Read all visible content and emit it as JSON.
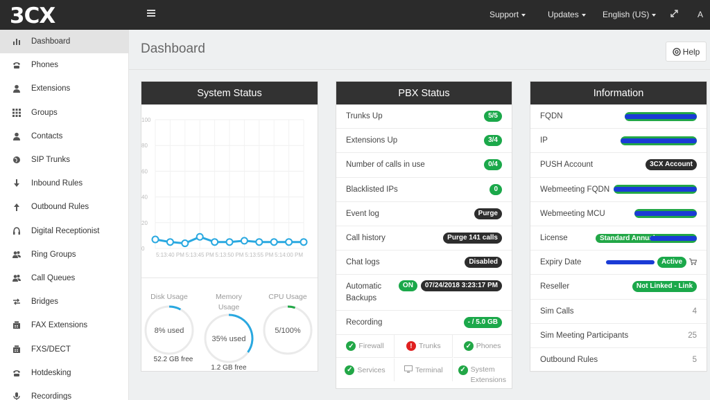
{
  "topbar": {
    "logo": "3CX",
    "nav": [
      "Support",
      "Updates",
      "English (US)"
    ],
    "user": "A"
  },
  "sidebar": {
    "items": [
      {
        "label": "Dashboard",
        "icon": "bar-chart-icon",
        "active": true
      },
      {
        "label": "Phones",
        "icon": "phone-icon"
      },
      {
        "label": "Extensions",
        "icon": "user-icon"
      },
      {
        "label": "Groups",
        "icon": "grid-icon"
      },
      {
        "label": "Contacts",
        "icon": "user-icon"
      },
      {
        "label": "SIP Trunks",
        "icon": "globe-icon"
      },
      {
        "label": "Inbound Rules",
        "icon": "arrow-down-icon"
      },
      {
        "label": "Outbound Rules",
        "icon": "arrow-up-icon"
      },
      {
        "label": "Digital Receptionist",
        "icon": "headset-icon"
      },
      {
        "label": "Ring Groups",
        "icon": "users-icon"
      },
      {
        "label": "Call Queues",
        "icon": "users-icon"
      },
      {
        "label": "Bridges",
        "icon": "swap-icon"
      },
      {
        "label": "FAX Extensions",
        "icon": "fax-icon"
      },
      {
        "label": "FXS/DECT",
        "icon": "fax-icon"
      },
      {
        "label": "Hotdesking",
        "icon": "phone-icon"
      },
      {
        "label": "Recordings",
        "icon": "mic-icon"
      }
    ]
  },
  "page": {
    "title": "Dashboard",
    "help": "Help"
  },
  "system_status": {
    "title": "System Status",
    "chart_data": {
      "type": "line",
      "x": [
        "",
        "5:13:40 PM",
        "",
        "5:13:45 PM",
        "",
        "5:13:50 PM",
        "",
        "5:13:55 PM",
        "",
        "5:14:00 PM",
        ""
      ],
      "y_ticks": [
        "100",
        "80",
        "60",
        "40",
        "20",
        "0"
      ],
      "ylim": [
        0,
        100
      ],
      "values": [
        7,
        5,
        4,
        9,
        5,
        5,
        6,
        5,
        5,
        5,
        5
      ]
    },
    "gauges": [
      {
        "label": "Disk Usage",
        "center": "8% used",
        "sub": "52.2 GB free",
        "fraction": 0.08
      },
      {
        "label": "Memory Usage",
        "center": "35% used",
        "sub": "1.2 GB free",
        "fraction": 0.35
      },
      {
        "label": "CPU Usage",
        "center": "5/100%",
        "sub": "",
        "fraction": 0.05
      }
    ]
  },
  "pbx_status": {
    "title": "PBX Status",
    "rows": [
      {
        "label": "Trunks Up",
        "badge": "5/5",
        "style": "green"
      },
      {
        "label": "Extensions Up",
        "badge": "3/4",
        "style": "green"
      },
      {
        "label": "Number of calls in use",
        "badge": "0/4",
        "style": "green"
      },
      {
        "label": "Blacklisted IPs",
        "badge": "0",
        "style": "green"
      },
      {
        "label": "Event log",
        "badge": "Purge",
        "style": "dark"
      },
      {
        "label": "Call history",
        "badge": "Purge 141 calls",
        "style": "dark"
      },
      {
        "label": "Chat logs",
        "badge": "Disabled",
        "style": "dark"
      }
    ],
    "backup": {
      "label": "Automatic Backups",
      "on": "ON",
      "date": "07/24/2018 3:23:17 PM"
    },
    "recording": {
      "label": "Recording",
      "badge": "- / 5.0 GB"
    },
    "services": [
      {
        "label": "Firewall",
        "state": "ok"
      },
      {
        "label": "Trunks",
        "state": "error"
      },
      {
        "label": "Phones",
        "state": "ok"
      },
      {
        "label": "Services",
        "state": "ok"
      },
      {
        "label": "Terminal",
        "state": "terminal"
      },
      {
        "label": "System Extensions",
        "state": "ok"
      }
    ]
  },
  "information": {
    "title": "Information",
    "rows": [
      {
        "label": "FQDN",
        "type": "scribble"
      },
      {
        "label": "IP",
        "type": "scribble"
      },
      {
        "label": "PUSH Account",
        "type": "dark",
        "value": "3CX Account"
      },
      {
        "label": "Webmeeting FQDN",
        "type": "scribble"
      },
      {
        "label": "Webmeeting MCU",
        "type": "scribble"
      },
      {
        "label": "License",
        "type": "scribble-text",
        "value": "Standard Annual"
      },
      {
        "label": "Expiry Date",
        "type": "active",
        "value": "Active"
      },
      {
        "label": "Reseller",
        "type": "green",
        "value": "Not Linked - Link"
      },
      {
        "label": "Sim Calls",
        "type": "plain",
        "value": "4"
      },
      {
        "label": "Sim Meeting Participants",
        "type": "plain",
        "value": "25"
      },
      {
        "label": "Outbound Rules",
        "type": "plain",
        "value": "5"
      }
    ]
  },
  "colors": {
    "accent": "#29a8e0",
    "green": "#1ba84a",
    "dark": "#2d2d2d"
  }
}
